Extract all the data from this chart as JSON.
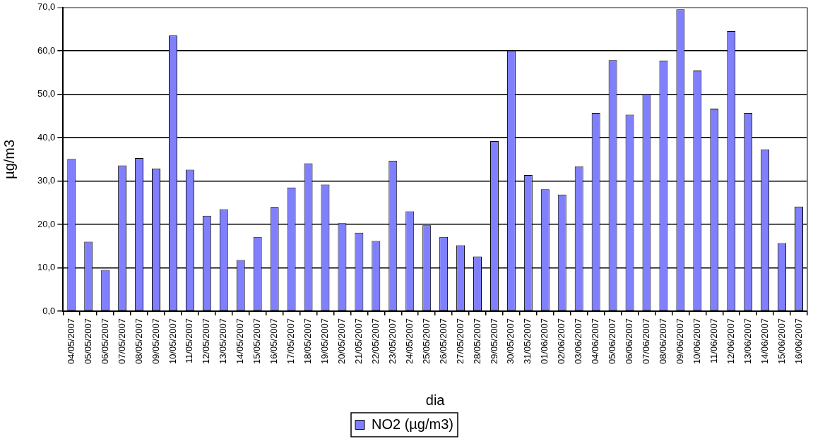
{
  "chart_data": {
    "type": "bar",
    "xlabel": "dia",
    "ylabel": "µg/m3",
    "categories": [
      "04/05/2007",
      "05/05/2007",
      "06/05/2007",
      "07/05/2007",
      "08/05/2007",
      "09/05/2007",
      "10/05/2007",
      "11/05/2007",
      "12/05/2007",
      "13/05/2007",
      "14/05/2007",
      "15/05/2007",
      "16/05/2007",
      "17/05/2007",
      "18/05/2007",
      "19/05/2007",
      "20/05/2007",
      "21/05/2007",
      "22/05/2007",
      "23/05/2007",
      "24/05/2007",
      "25/05/2007",
      "26/05/2007",
      "27/05/2007",
      "28/05/2007",
      "29/05/2007",
      "30/05/2007",
      "31/05/2007",
      "01/06/2007",
      "02/06/2007",
      "03/06/2007",
      "04/06/2007",
      "05/06/2007",
      "06/06/2007",
      "07/06/2007",
      "08/06/2007",
      "09/06/2007",
      "10/06/2007",
      "11/06/2007",
      "12/06/2007",
      "13/06/2007",
      "14/06/2007",
      "15/06/2007",
      "16/06/2007"
    ],
    "series": [
      {
        "name": "NO2 (µg/m3)",
        "color": "#8080ff",
        "values": [
          35.1,
          16.0,
          9.5,
          33.6,
          35.3,
          32.9,
          63.6,
          32.6,
          22.0,
          23.5,
          11.8,
          17.1,
          23.9,
          28.5,
          34.1,
          29.2,
          20.3,
          18.1,
          16.2,
          34.7,
          23.0,
          19.8,
          17.1,
          15.2,
          12.6,
          39.2,
          60.1,
          31.4,
          28.1,
          26.9,
          33.4,
          45.7,
          57.9,
          45.3,
          50.1,
          57.8,
          69.6,
          55.5,
          46.7,
          64.6,
          45.7,
          37.3,
          15.7,
          24.1
        ]
      }
    ],
    "ylim": [
      0,
      70
    ],
    "yticks": [
      {
        "value": 0,
        "label": "0,0"
      },
      {
        "value": 10,
        "label": "10,0"
      },
      {
        "value": 20,
        "label": "20,0"
      },
      {
        "value": 30,
        "label": "30,0"
      },
      {
        "value": 40,
        "label": "40,0"
      },
      {
        "value": 50,
        "label": "50,0"
      },
      {
        "value": 60,
        "label": "60,0"
      },
      {
        "value": 70,
        "label": "70,0"
      }
    ],
    "grid": "y",
    "legend": "bottom"
  }
}
